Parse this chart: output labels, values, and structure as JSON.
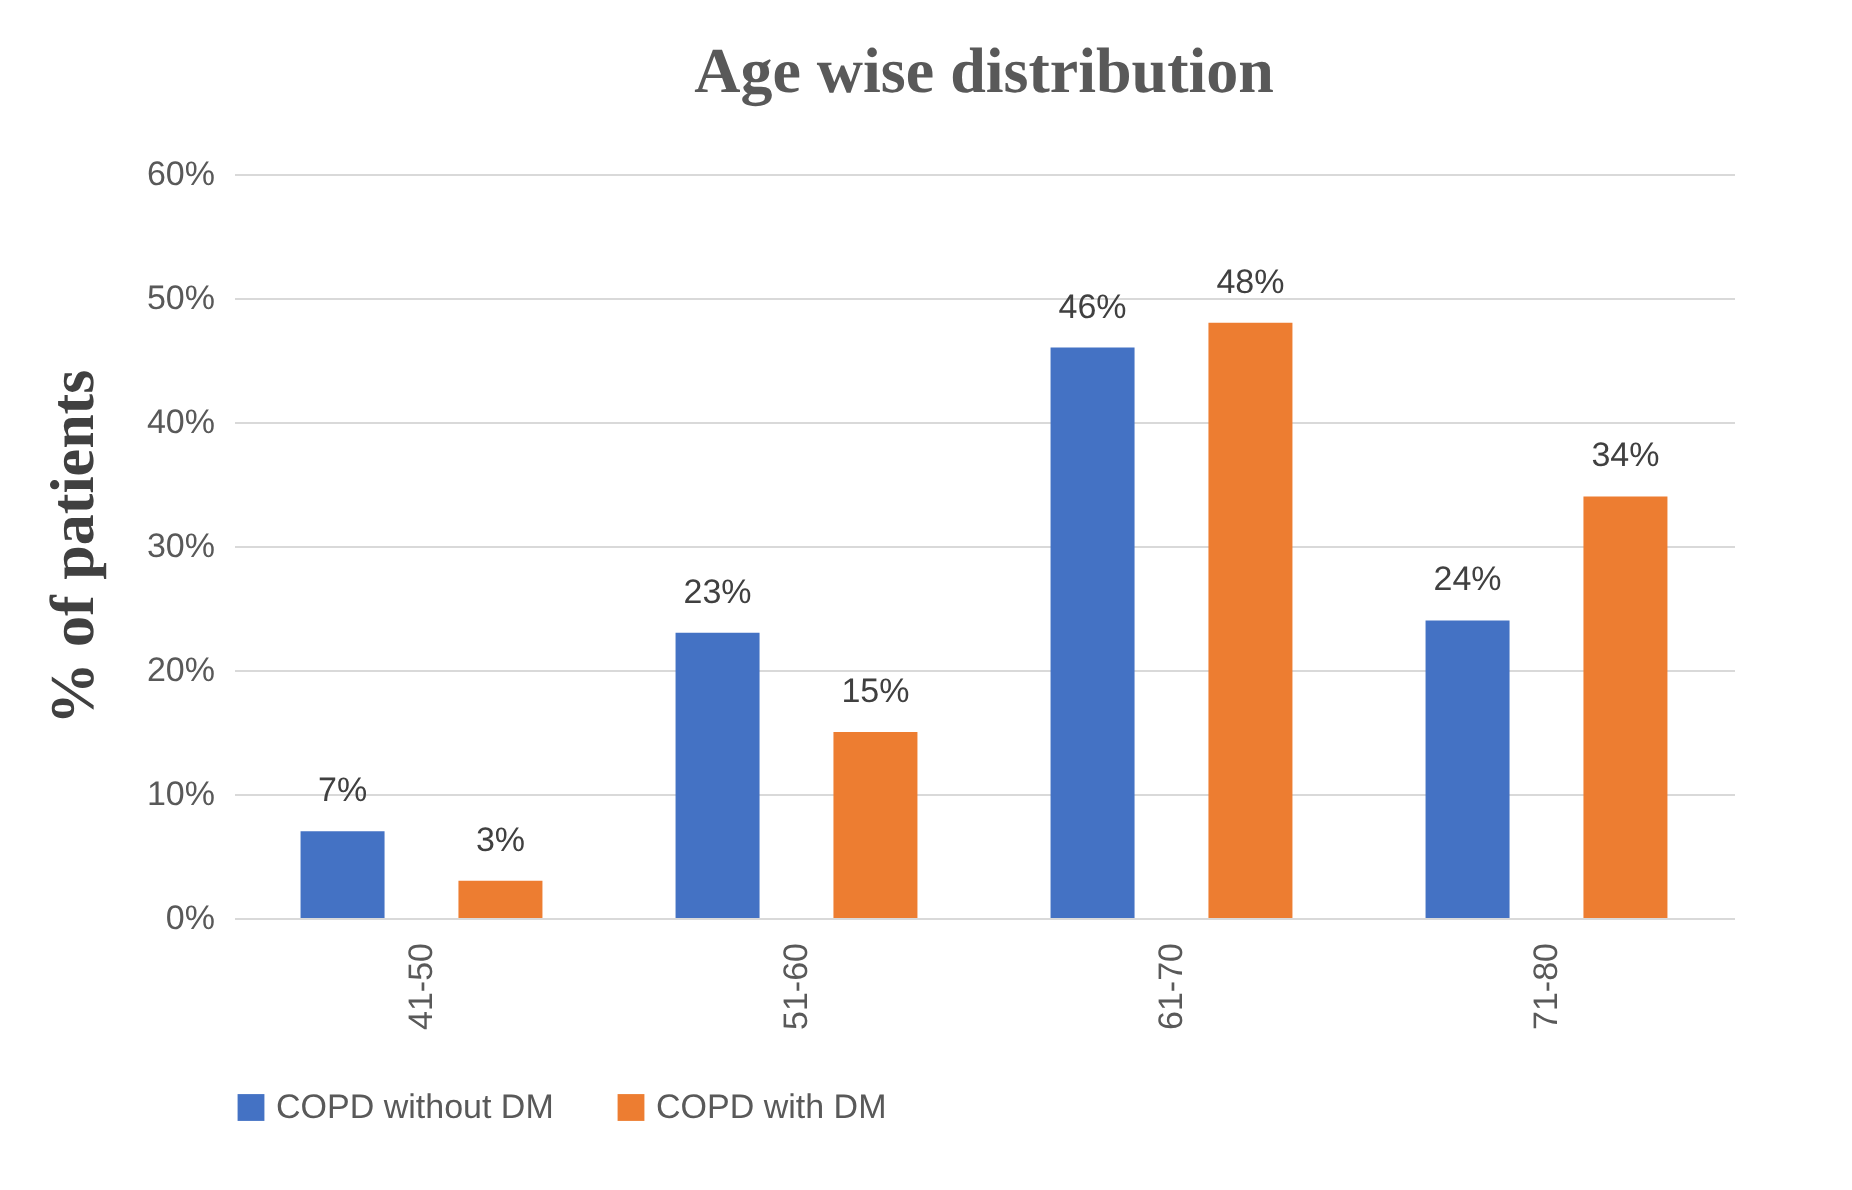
{
  "chart_data": {
    "type": "bar",
    "title": "Age wise distribution",
    "ylabel": "% of patients",
    "categories": [
      "41-50",
      "51-60",
      "61-70",
      "71-80"
    ],
    "series": [
      {
        "name": "COPD without DM",
        "color": "#4472c4",
        "values": [
          7,
          23,
          46,
          24
        ],
        "value_labels": [
          "7%",
          "23%",
          "46%",
          "24%"
        ]
      },
      {
        "name": "COPD with DM",
        "color": "#ed7d31",
        "values": [
          3,
          15,
          48,
          34
        ],
        "value_labels": [
          "3%",
          "15%",
          "48%",
          "34%"
        ]
      }
    ],
    "ylim": [
      0,
      60
    ],
    "yticks": [
      {
        "value": 0,
        "label": "0%"
      },
      {
        "value": 10,
        "label": "10%"
      },
      {
        "value": 20,
        "label": "20%"
      },
      {
        "value": 30,
        "label": "30%"
      },
      {
        "value": 40,
        "label": "40%"
      },
      {
        "value": 50,
        "label": "50%"
      },
      {
        "value": 60,
        "label": "60%"
      }
    ],
    "grid": "y",
    "legend": "bottom"
  }
}
